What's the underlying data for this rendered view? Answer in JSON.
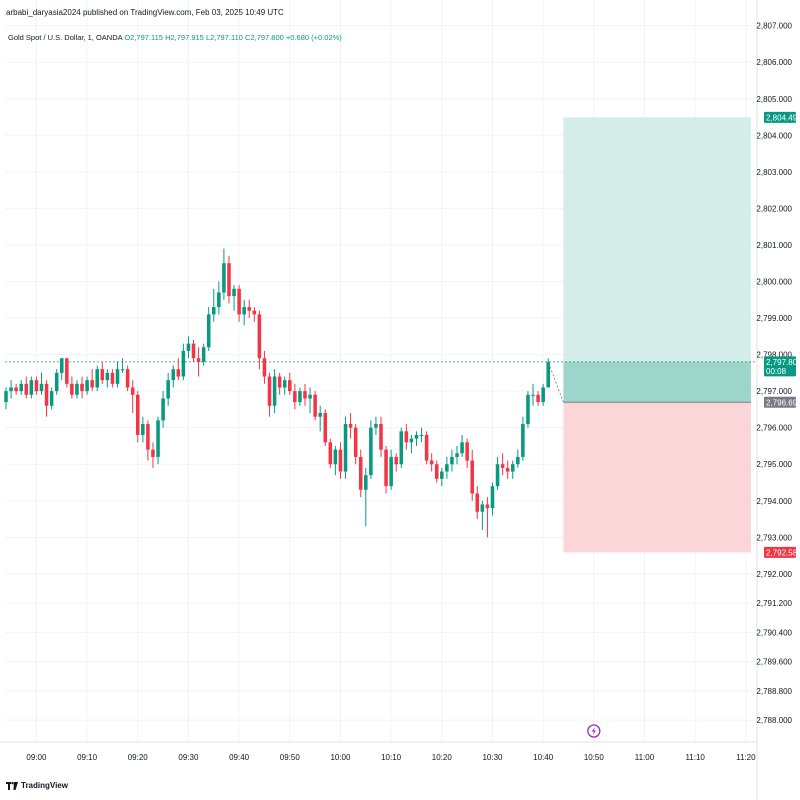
{
  "header": {
    "publisher_line": "arbabi_daryasia2024 published on TradingView.com, Feb 03, 2025 10:49 UTC"
  },
  "legend": {
    "symbol": "Gold Spot / U.S. Dollar, 1, OANDA",
    "open": "O2,797.115",
    "high": "H2,797.915",
    "low": "L2,797.110",
    "close": "C2,797.800",
    "change": "+0.680 (+0.02%)"
  },
  "footer": {
    "logo_text": "TradingView"
  },
  "chart_data": {
    "type": "candlestick",
    "y_range": [
      2787.4,
      2807.1
    ],
    "y_ticks": [
      "2,807.000",
      "2,806.000",
      "2,805.000",
      "2,804.000",
      "2,803.000",
      "2,802.000",
      "2,801.000",
      "2,800.000",
      "2,799.000",
      "2,798.000",
      "2,797.000",
      "2,796.000",
      "2,795.000",
      "2,794.000",
      "2,793.000",
      "2,792.000",
      "2,791.200",
      "2,790.400",
      "2,789.600",
      "2,788.800",
      "2,788.000"
    ],
    "y_tick_values": [
      2807,
      2806,
      2805,
      2804,
      2803,
      2802,
      2801,
      2800,
      2799,
      2798,
      2797,
      2796,
      2795,
      2794,
      2793,
      2792,
      2791.2,
      2790.4,
      2789.6,
      2788.8,
      2788
    ],
    "x_ticks": [
      "09:00",
      "09:10",
      "09:20",
      "09:30",
      "09:40",
      "09:50",
      "10:00",
      "10:10",
      "10:20",
      "10:30",
      "10:40",
      "10:50",
      "11:00",
      "11:10",
      "11:20"
    ],
    "x_tick_minutes": [
      6,
      16,
      26,
      36,
      46,
      56,
      66,
      76,
      86,
      96,
      106,
      116,
      126,
      136,
      146
    ],
    "candles_start_minute": 0,
    "candles": [
      [
        2796.7,
        2797.1,
        2796.5,
        2797.0
      ],
      [
        2797.0,
        2797.3,
        2796.8,
        2797.1
      ],
      [
        2797.1,
        2797.2,
        2796.9,
        2797.0
      ],
      [
        2797.0,
        2797.3,
        2796.9,
        2797.2
      ],
      [
        2797.2,
        2797.4,
        2796.8,
        2796.9
      ],
      [
        2796.9,
        2797.4,
        2796.8,
        2797.3
      ],
      [
        2797.3,
        2797.4,
        2796.9,
        2797.0
      ],
      [
        2797.0,
        2797.5,
        2796.9,
        2797.2
      ],
      [
        2797.2,
        2797.3,
        2796.3,
        2796.6
      ],
      [
        2796.6,
        2797.1,
        2796.5,
        2797.0
      ],
      [
        2797.0,
        2797.6,
        2796.9,
        2797.5
      ],
      [
        2797.5,
        2797.9,
        2797.3,
        2797.9
      ],
      [
        2797.9,
        2797.9,
        2797.1,
        2797.2
      ],
      [
        2797.2,
        2797.4,
        2796.8,
        2796.9
      ],
      [
        2796.9,
        2797.3,
        2796.8,
        2797.2
      ],
      [
        2797.2,
        2797.4,
        2796.8,
        2797.0
      ],
      [
        2797.0,
        2797.4,
        2796.9,
        2797.3
      ],
      [
        2797.3,
        2797.6,
        2797.0,
        2797.1
      ],
      [
        2797.1,
        2797.7,
        2797.0,
        2797.6
      ],
      [
        2797.6,
        2797.8,
        2797.2,
        2797.3
      ],
      [
        2797.3,
        2797.6,
        2797.1,
        2797.5
      ],
      [
        2797.5,
        2797.6,
        2797.1,
        2797.2
      ],
      [
        2797.2,
        2797.8,
        2797.1,
        2797.6
      ],
      [
        2797.6,
        2797.9,
        2797.5,
        2797.6
      ],
      [
        2797.6,
        2797.7,
        2797.0,
        2797.1
      ],
      [
        2797.1,
        2797.3,
        2796.4,
        2796.9
      ],
      [
        2796.9,
        2797.0,
        2795.6,
        2795.8
      ],
      [
        2795.8,
        2796.3,
        2795.6,
        2796.1
      ],
      [
        2796.1,
        2796.2,
        2795.1,
        2795.4
      ],
      [
        2795.4,
        2795.6,
        2794.9,
        2795.2
      ],
      [
        2795.2,
        2796.3,
        2795.0,
        2796.2
      ],
      [
        2796.2,
        2797.0,
        2796.0,
        2796.8
      ],
      [
        2796.8,
        2797.5,
        2796.6,
        2797.3
      ],
      [
        2797.3,
        2797.7,
        2797.1,
        2797.6
      ],
      [
        2797.6,
        2797.9,
        2797.3,
        2797.4
      ],
      [
        2797.4,
        2798.3,
        2797.3,
        2798.1
      ],
      [
        2798.1,
        2798.5,
        2797.9,
        2798.3
      ],
      [
        2798.3,
        2798.4,
        2797.8,
        2797.9
      ],
      [
        2797.9,
        2798.2,
        2797.4,
        2797.8
      ],
      [
        2797.8,
        2798.3,
        2797.7,
        2798.2
      ],
      [
        2798.2,
        2799.3,
        2798.1,
        2799.1
      ],
      [
        2799.1,
        2799.8,
        2798.9,
        2799.3
      ],
      [
        2799.3,
        2800.0,
        2799.1,
        2799.7
      ],
      [
        2799.7,
        2800.9,
        2799.5,
        2800.5
      ],
      [
        2800.5,
        2800.7,
        2799.4,
        2799.6
      ],
      [
        2799.6,
        2799.9,
        2799.2,
        2799.8
      ],
      [
        2799.8,
        2799.9,
        2798.9,
        2799.1
      ],
      [
        2799.1,
        2799.5,
        2798.8,
        2799.3
      ],
      [
        2799.3,
        2799.5,
        2799.0,
        2799.2
      ],
      [
        2799.2,
        2799.3,
        2798.9,
        2799.1
      ],
      [
        2799.1,
        2799.2,
        2797.6,
        2797.9
      ],
      [
        2797.9,
        2798.1,
        2797.2,
        2797.4
      ],
      [
        2797.4,
        2797.5,
        2796.3,
        2796.6
      ],
      [
        2796.6,
        2797.6,
        2796.4,
        2797.4
      ],
      [
        2797.4,
        2797.5,
        2796.9,
        2797.1
      ],
      [
        2797.1,
        2797.4,
        2796.9,
        2797.3
      ],
      [
        2797.3,
        2797.5,
        2796.9,
        2797.0
      ],
      [
        2797.0,
        2797.2,
        2796.5,
        2796.7
      ],
      [
        2796.7,
        2797.1,
        2796.6,
        2797.0
      ],
      [
        2797.0,
        2797.2,
        2796.6,
        2796.8
      ],
      [
        2796.8,
        2797.1,
        2796.4,
        2796.9
      ],
      [
        2796.9,
        2797.0,
        2796.2,
        2796.3
      ],
      [
        2796.3,
        2796.6,
        2795.9,
        2796.4
      ],
      [
        2796.4,
        2796.5,
        2795.5,
        2795.6
      ],
      [
        2795.6,
        2795.7,
        2794.9,
        2795.0
      ],
      [
        2795.0,
        2795.5,
        2794.7,
        2795.4
      ],
      [
        2795.4,
        2795.6,
        2794.6,
        2794.8
      ],
      [
        2794.8,
        2796.3,
        2794.6,
        2796.1
      ],
      [
        2796.1,
        2796.4,
        2795.7,
        2796.0
      ],
      [
        2796.0,
        2796.1,
        2795.0,
        2795.2
      ],
      [
        2795.2,
        2795.4,
        2794.1,
        2794.3
      ],
      [
        2794.3,
        2794.9,
        2793.3,
        2794.7
      ],
      [
        2794.7,
        2796.2,
        2794.6,
        2796.0
      ],
      [
        2796.0,
        2796.3,
        2795.8,
        2796.1
      ],
      [
        2796.1,
        2796.3,
        2795.2,
        2795.4
      ],
      [
        2795.4,
        2795.5,
        2794.2,
        2794.4
      ],
      [
        2794.4,
        2795.4,
        2794.3,
        2795.2
      ],
      [
        2795.2,
        2795.3,
        2794.8,
        2795.0
      ],
      [
        2795.0,
        2796.0,
        2794.9,
        2795.9
      ],
      [
        2795.9,
        2796.1,
        2795.4,
        2795.6
      ],
      [
        2795.6,
        2795.8,
        2795.3,
        2795.7
      ],
      [
        2795.7,
        2795.9,
        2795.5,
        2795.8
      ],
      [
        2795.8,
        2796.0,
        2795.6,
        2795.8
      ],
      [
        2795.8,
        2795.9,
        2795.0,
        2795.1
      ],
      [
        2795.1,
        2795.3,
        2794.8,
        2795.0
      ],
      [
        2795.0,
        2795.1,
        2794.5,
        2794.6
      ],
      [
        2794.6,
        2794.9,
        2794.4,
        2794.8
      ],
      [
        2794.8,
        2795.2,
        2794.6,
        2795.0
      ],
      [
        2795.0,
        2795.4,
        2794.8,
        2795.2
      ],
      [
        2795.2,
        2795.5,
        2795.0,
        2795.3
      ],
      [
        2795.3,
        2795.8,
        2795.2,
        2795.6
      ],
      [
        2795.6,
        2795.7,
        2794.9,
        2795.1
      ],
      [
        2795.1,
        2795.4,
        2794.0,
        2794.2
      ],
      [
        2794.2,
        2794.4,
        2793.5,
        2793.7
      ],
      [
        2793.7,
        2794.0,
        2793.2,
        2793.9
      ],
      [
        2793.9,
        2794.1,
        2793.0,
        2793.8
      ],
      [
        2793.8,
        2794.5,
        2793.6,
        2794.4
      ],
      [
        2794.4,
        2795.2,
        2794.3,
        2795.0
      ],
      [
        2795.0,
        2795.3,
        2794.7,
        2794.9
      ],
      [
        2794.9,
        2795.1,
        2794.6,
        2794.8
      ],
      [
        2794.8,
        2795.1,
        2794.6,
        2795.0
      ],
      [
        2795.0,
        2795.4,
        2794.9,
        2795.2
      ],
      [
        2795.2,
        2796.3,
        2795.1,
        2796.1
      ],
      [
        2796.1,
        2797.0,
        2796.0,
        2796.9
      ],
      [
        2796.9,
        2797.2,
        2796.6,
        2796.9
      ],
      [
        2796.9,
        2797.0,
        2796.6,
        2796.7
      ],
      [
        2796.7,
        2797.2,
        2796.6,
        2797.1
      ],
      [
        2797.1,
        2797.9,
        2797.1,
        2797.8
      ]
    ],
    "position": {
      "entry": 2796.695,
      "target": 2804.492,
      "stop": 2792.587,
      "entry_label": "2,796.695",
      "target_label": "2,804.492",
      "stop_label": "2,792.587",
      "start_minute": 110,
      "end_minute": 147
    },
    "last_price": 2797.8,
    "last_price_label": "2,797.800",
    "countdown": "00:08",
    "colors": {
      "up": "#089981",
      "down": "#f23645",
      "target_fill": "#d4ede8",
      "target_fill_active": "#9ed5ca",
      "stop_fill": "#fad6d9",
      "grid": "#f0f3fa"
    }
  }
}
